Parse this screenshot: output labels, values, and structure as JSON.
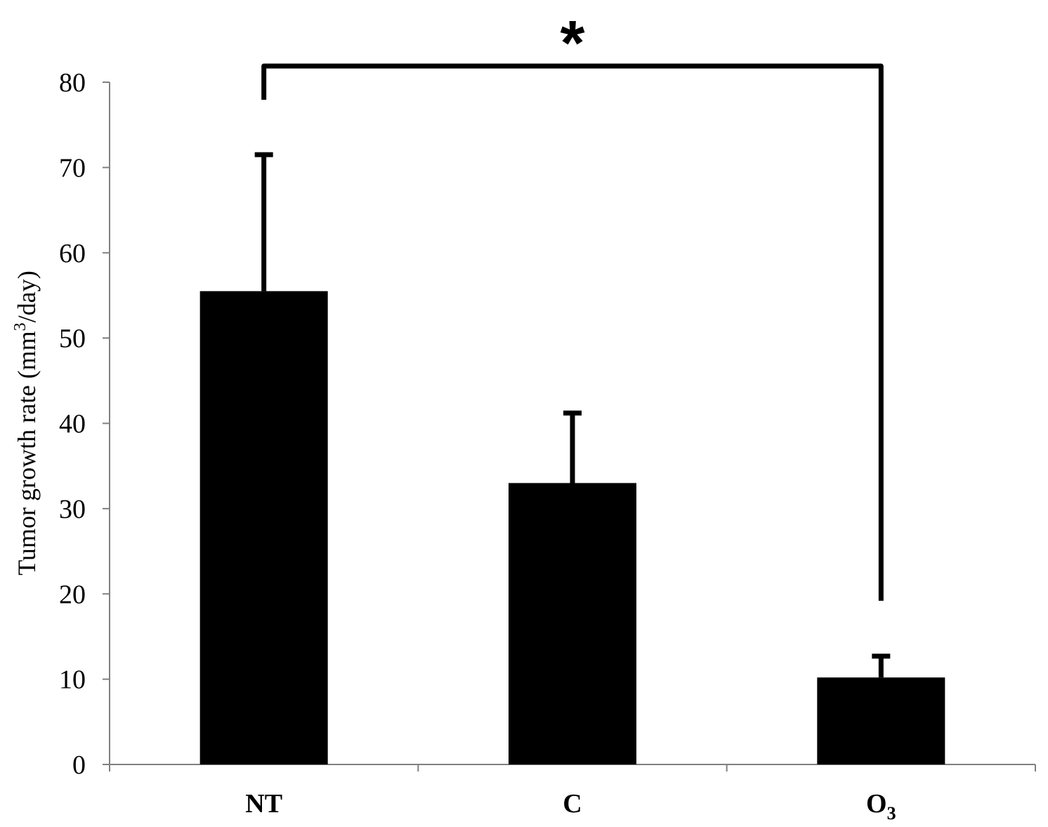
{
  "chart_data": {
    "type": "bar",
    "categories": [
      "NT",
      "C",
      "O3"
    ],
    "category_display": [
      {
        "main": "NT",
        "sub": ""
      },
      {
        "main": "C",
        "sub": ""
      },
      {
        "main": "O",
        "sub": "3"
      }
    ],
    "values": [
      55.5,
      33,
      10.2
    ],
    "error_upper": [
      71.5,
      41.2,
      12.7
    ],
    "ylabel": {
      "main": "Tumor growth rate  (mm",
      "sup": "3",
      "end": "/day)"
    },
    "xlabel": "",
    "ylim": [
      0,
      80
    ],
    "yticks": [
      0,
      10,
      20,
      30,
      40,
      50,
      60,
      70,
      80
    ],
    "bar_color": "#000000",
    "grid": false,
    "significance": {
      "from_category": "NT",
      "to_category": "O3",
      "label": "*"
    }
  }
}
